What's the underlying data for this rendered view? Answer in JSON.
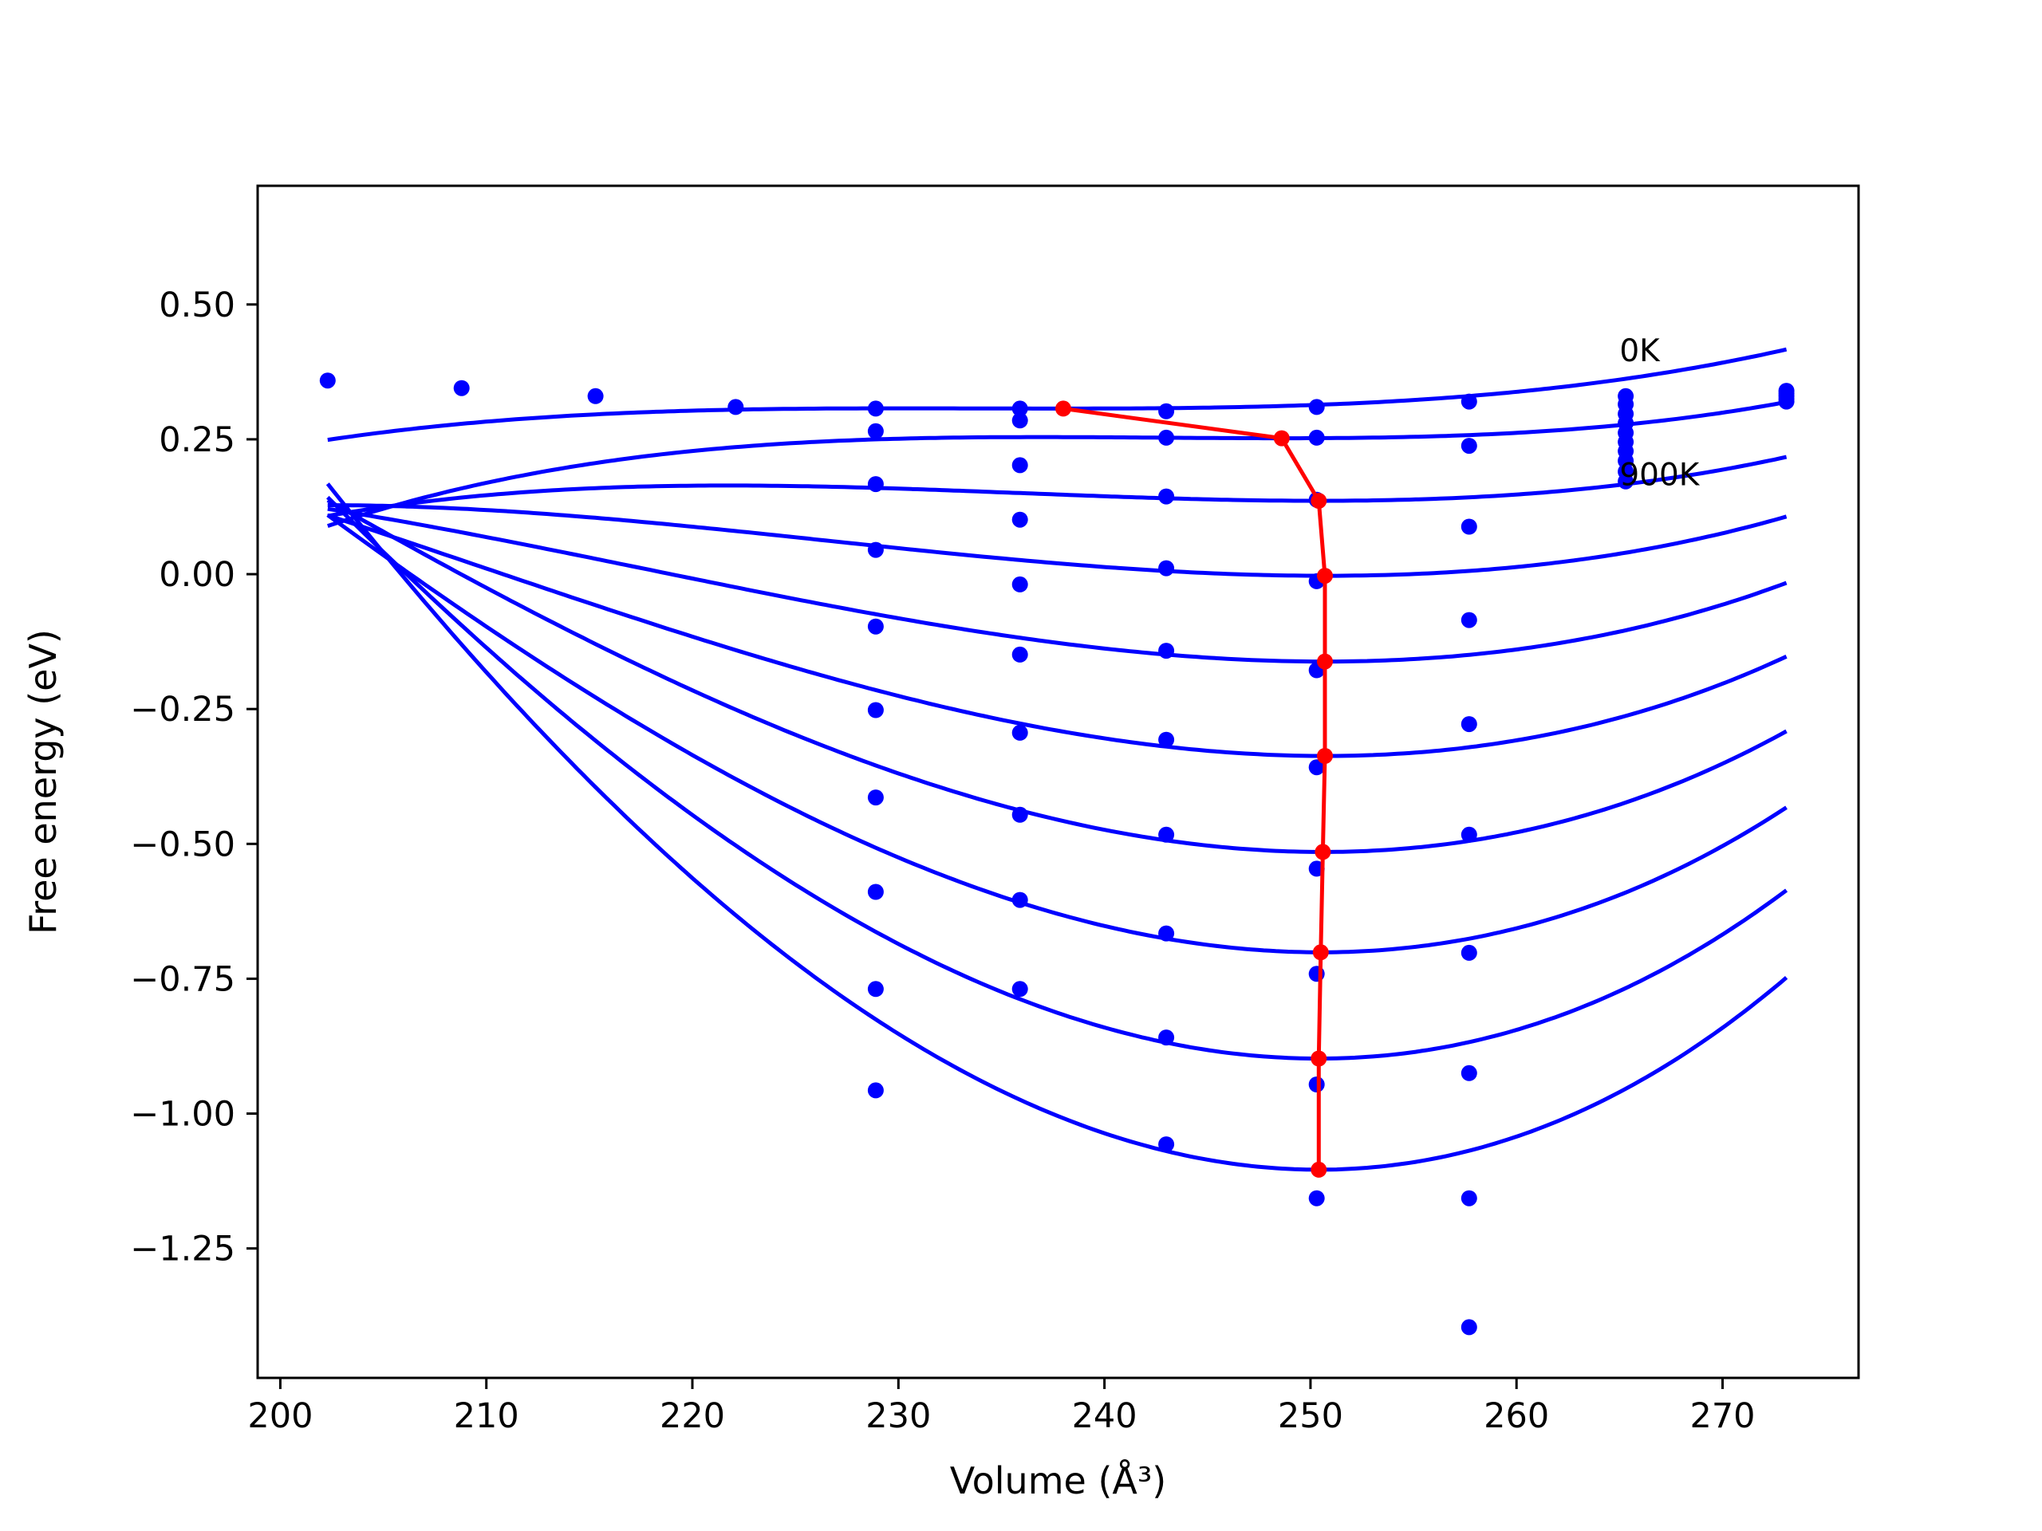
{
  "chart_data": {
    "type": "line",
    "title": "",
    "xlabel": "Volume (Å³)",
    "ylabel": "Free energy (eV)",
    "xlim": [
      198.9,
      276.6
    ],
    "ylim": [
      -1.49,
      0.72
    ],
    "xticks": [
      200,
      210,
      220,
      230,
      240,
      250,
      260,
      270
    ],
    "xtick_labels": [
      "200",
      "210",
      "220",
      "230",
      "240",
      "250",
      "260",
      "270"
    ],
    "yticks": [
      0.5,
      0.25,
      0.0,
      -0.25,
      -0.5,
      -0.75,
      -1.0,
      -1.25
    ],
    "ytick_labels": [
      "0.50",
      "0.25",
      "0.00",
      "−0.25",
      "−0.50",
      "−0.75",
      "−1.00",
      "−1.25"
    ],
    "grid": false,
    "annotations": [
      {
        "text": "0K",
        "x": 265.0,
        "y": 0.395
      },
      {
        "text": "900K",
        "x": 265.0,
        "y": 0.165
      }
    ],
    "fit_curve_color": "#0000ff",
    "minimum_path_color": "#ff0000",
    "fit_curves": [
      {
        "V0": 238.0,
        "Fmin": 0.307,
        "a": 2.23e-05,
        "b": 1.9e-06
      },
      {
        "V0": 248.6,
        "Fmin": 0.252,
        "a": 4.68e-05,
        "b": 2.65e-06
      },
      {
        "V0": 250.4,
        "Fmin": 0.136,
        "a": 0.0001033,
        "b": 2.4e-06
      },
      {
        "V0": 250.7,
        "Fmin": -0.003,
        "a": 0.0001672,
        "b": 2.3e-06
      },
      {
        "V0": 250.7,
        "Fmin": -0.162,
        "a": 0.000237,
        "b": 2.4e-06
      },
      {
        "V0": 250.7,
        "Fmin": -0.337,
        "a": 0.0003115,
        "b": 2.5e-06
      },
      {
        "V0": 250.6,
        "Fmin": -0.515,
        "a": 0.0003905,
        "b": 2.3e-06
      },
      {
        "V0": 250.5,
        "Fmin": -0.701,
        "a": 0.0004694,
        "b": 2.5e-06
      },
      {
        "V0": 250.4,
        "Fmin": -0.898,
        "a": 0.0005556,
        "b": 2.2e-06
      },
      {
        "V0": 250.4,
        "Fmin": -1.104,
        "a": 0.0006458,
        "b": 2e-06
      }
    ],
    "fit_x_range": [
      202.3,
      273.1
    ],
    "data_points": [
      {
        "x": 202.3,
        "y": 0.359
      },
      {
        "x": 208.8,
        "y": 0.345
      },
      {
        "x": 215.3,
        "y": 0.33
      },
      {
        "x": 222.1,
        "y": 0.31
      },
      {
        "x": 228.9,
        "y": 0.307
      },
      {
        "x": 228.9,
        "y": 0.265
      },
      {
        "x": 228.9,
        "y": 0.167
      },
      {
        "x": 228.9,
        "y": 0.045
      },
      {
        "x": 228.9,
        "y": -0.097
      },
      {
        "x": 228.9,
        "y": -0.252
      },
      {
        "x": 228.9,
        "y": -0.414
      },
      {
        "x": 228.9,
        "y": -0.589
      },
      {
        "x": 228.9,
        "y": -0.769
      },
      {
        "x": 228.9,
        "y": -0.957
      },
      {
        "x": 235.9,
        "y": 0.307
      },
      {
        "x": 235.9,
        "y": 0.285
      },
      {
        "x": 235.9,
        "y": 0.202
      },
      {
        "x": 235.9,
        "y": 0.101
      },
      {
        "x": 235.9,
        "y": -0.019
      },
      {
        "x": 235.9,
        "y": -0.149
      },
      {
        "x": 235.9,
        "y": -0.294
      },
      {
        "x": 235.9,
        "y": -0.446
      },
      {
        "x": 235.9,
        "y": -0.604
      },
      {
        "x": 235.9,
        "y": -0.769
      },
      {
        "x": 243.0,
        "y": 0.302
      },
      {
        "x": 243.0,
        "y": 0.253
      },
      {
        "x": 243.0,
        "y": 0.144
      },
      {
        "x": 243.0,
        "y": 0.011
      },
      {
        "x": 243.0,
        "y": -0.142
      },
      {
        "x": 243.0,
        "y": -0.307
      },
      {
        "x": 243.0,
        "y": -0.483
      },
      {
        "x": 243.0,
        "y": -0.666
      },
      {
        "x": 243.0,
        "y": -0.859
      },
      {
        "x": 243.0,
        "y": -1.057
      },
      {
        "x": 250.3,
        "y": 0.31
      },
      {
        "x": 250.3,
        "y": 0.253
      },
      {
        "x": 250.3,
        "y": 0.138
      },
      {
        "x": 250.3,
        "y": -0.013
      },
      {
        "x": 250.3,
        "y": -0.178
      },
      {
        "x": 250.3,
        "y": -0.358
      },
      {
        "x": 250.3,
        "y": -0.546
      },
      {
        "x": 250.3,
        "y": -0.741
      },
      {
        "x": 250.3,
        "y": -0.946
      },
      {
        "x": 250.3,
        "y": -1.157
      },
      {
        "x": 257.7,
        "y": 0.32
      },
      {
        "x": 257.7,
        "y": 0.238
      },
      {
        "x": 257.7,
        "y": 0.088
      },
      {
        "x": 257.7,
        "y": -0.085
      },
      {
        "x": 257.7,
        "y": -0.278
      },
      {
        "x": 257.7,
        "y": -0.483
      },
      {
        "x": 257.7,
        "y": -0.702
      },
      {
        "x": 257.7,
        "y": -0.925
      },
      {
        "x": 257.7,
        "y": -1.157
      },
      {
        "x": 257.7,
        "y": -1.396
      },
      {
        "x": 265.3,
        "y": 0.33
      },
      {
        "x": 265.3,
        "y": 0.315
      },
      {
        "x": 265.3,
        "y": 0.297
      },
      {
        "x": 265.3,
        "y": 0.28
      },
      {
        "x": 265.3,
        "y": 0.262
      },
      {
        "x": 265.3,
        "y": 0.245
      },
      {
        "x": 265.3,
        "y": 0.228
      },
      {
        "x": 265.3,
        "y": 0.21
      },
      {
        "x": 265.3,
        "y": 0.19
      },
      {
        "x": 265.3,
        "y": 0.172
      },
      {
        "x": 273.1,
        "y": 0.34
      },
      {
        "x": 273.1,
        "y": 0.335
      },
      {
        "x": 273.1,
        "y": 0.33
      },
      {
        "x": 273.1,
        "y": 0.325
      },
      {
        "x": 273.1,
        "y": 0.32
      }
    ],
    "minimum_path": [
      {
        "x": 238.0,
        "y": 0.307
      },
      {
        "x": 248.6,
        "y": 0.252
      },
      {
        "x": 250.4,
        "y": 0.136
      },
      {
        "x": 250.7,
        "y": -0.003
      },
      {
        "x": 250.7,
        "y": -0.162
      },
      {
        "x": 250.7,
        "y": -0.337
      },
      {
        "x": 250.6,
        "y": -0.515
      },
      {
        "x": 250.5,
        "y": -0.701
      },
      {
        "x": 250.4,
        "y": -0.898
      },
      {
        "x": 250.4,
        "y": -1.104
      }
    ]
  }
}
